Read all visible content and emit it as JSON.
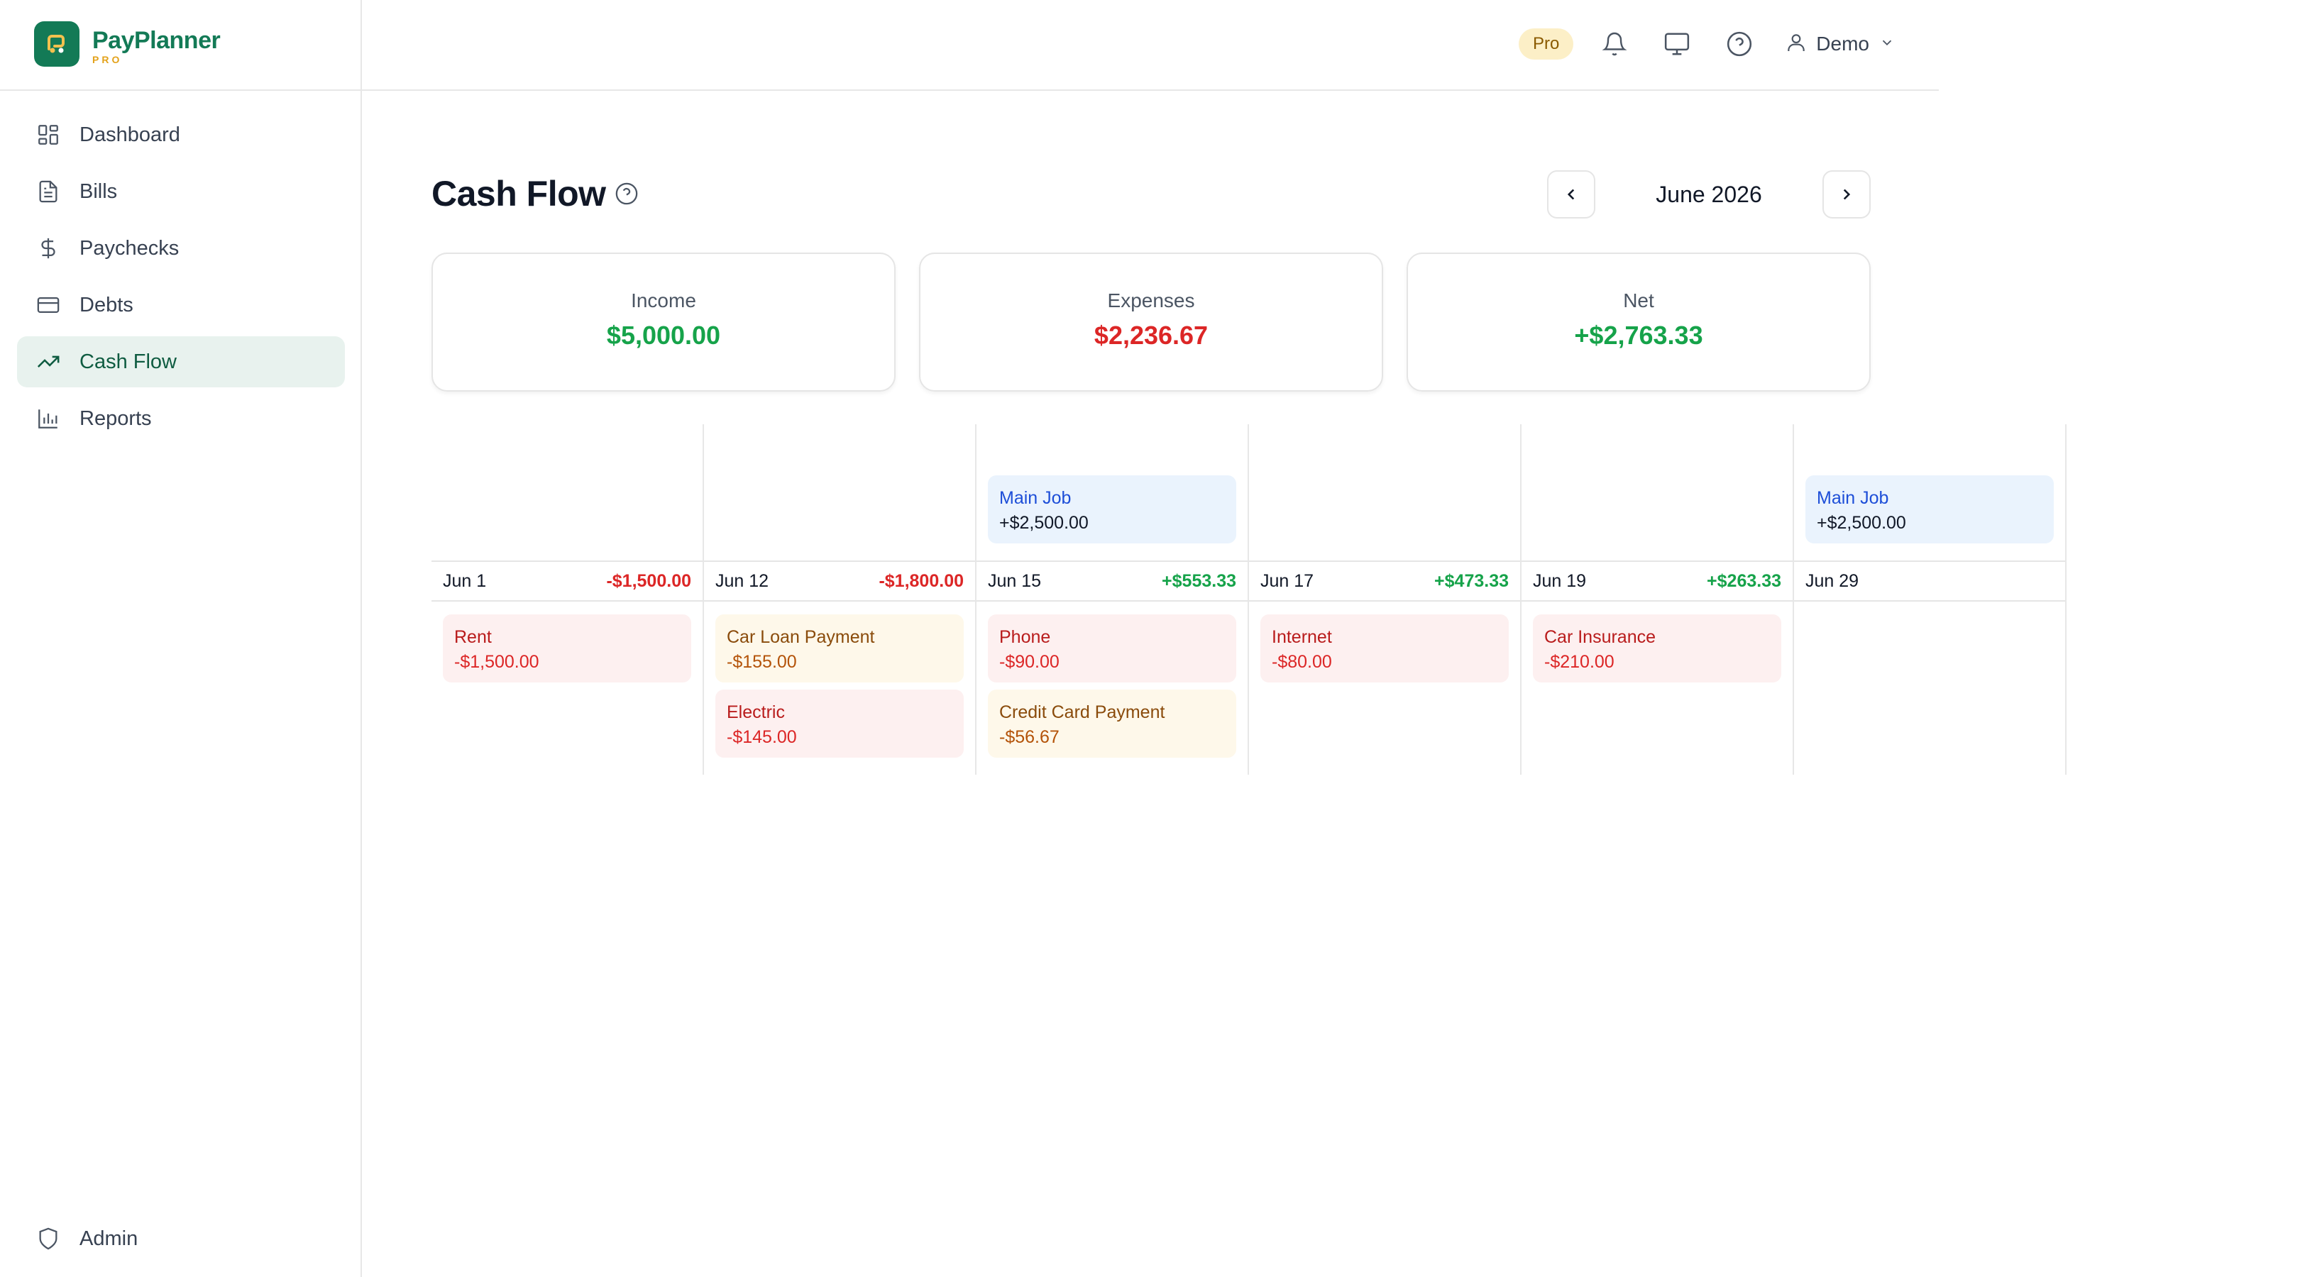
{
  "brand": {
    "name": "PayPlanner",
    "sub": "PRO"
  },
  "sidebar": {
    "items": [
      {
        "label": "Dashboard",
        "icon": "dashboard-icon",
        "active": false
      },
      {
        "label": "Bills",
        "icon": "file-text-icon",
        "active": false
      },
      {
        "label": "Paychecks",
        "icon": "dollar-icon",
        "active": false
      },
      {
        "label": "Debts",
        "icon": "credit-card-icon",
        "active": false
      },
      {
        "label": "Cash Flow",
        "icon": "trending-up-icon",
        "active": true
      },
      {
        "label": "Reports",
        "icon": "bar-chart-icon",
        "active": false
      }
    ],
    "admin": {
      "label": "Admin",
      "icon": "shield-icon"
    }
  },
  "topbar": {
    "badge": "Pro",
    "icons": [
      "bell-icon",
      "monitor-icon",
      "help-circle-icon"
    ],
    "user": "Demo"
  },
  "page": {
    "title": "Cash Flow",
    "month": "June 2026"
  },
  "stats": {
    "income": {
      "label": "Income",
      "value": "$5,000.00"
    },
    "expenses": {
      "label": "Expenses",
      "value": "$2,236.67"
    },
    "net": {
      "label": "Net",
      "value": "+$2,763.33"
    }
  },
  "timeline": [
    {
      "date": "Jun 1",
      "balance": "-$1,500.00",
      "balance_positive": false,
      "income": null,
      "bills": [
        {
          "name": "Rent",
          "amount": "-$1,500.00",
          "tone": "red"
        }
      ]
    },
    {
      "date": "Jun 12",
      "balance": "-$1,800.00",
      "balance_positive": false,
      "income": null,
      "bills": [
        {
          "name": "Car Loan Payment",
          "amount": "-$155.00",
          "tone": "amber"
        },
        {
          "name": "Electric",
          "amount": "-$145.00",
          "tone": "red"
        }
      ]
    },
    {
      "date": "Jun 15",
      "balance": "+$553.33",
      "balance_positive": true,
      "income": {
        "name": "Main Job",
        "amount": "+$2,500.00"
      },
      "bills": [
        {
          "name": "Phone",
          "amount": "-$90.00",
          "tone": "red"
        },
        {
          "name": "Credit Card Payment",
          "amount": "-$56.67",
          "tone": "amber"
        }
      ]
    },
    {
      "date": "Jun 17",
      "balance": "+$473.33",
      "balance_positive": true,
      "income": null,
      "bills": [
        {
          "name": "Internet",
          "amount": "-$80.00",
          "tone": "red"
        }
      ]
    },
    {
      "date": "Jun 19",
      "balance": "+$263.33",
      "balance_positive": true,
      "income": null,
      "bills": [
        {
          "name": "Car Insurance",
          "amount": "-$210.00",
          "tone": "red"
        }
      ]
    },
    {
      "date": "Jun 29",
      "balance": "",
      "balance_positive": true,
      "income": {
        "name": "Main Job",
        "amount": "+$2,500.00"
      },
      "bills": []
    }
  ],
  "colors": {
    "brand": "#137a56",
    "accent": "#e3a21a",
    "positive": "#16a34a",
    "negative": "#dc2626"
  }
}
